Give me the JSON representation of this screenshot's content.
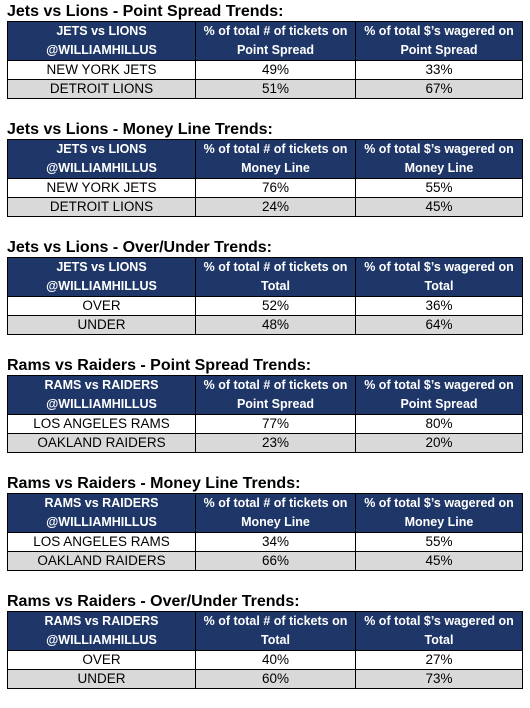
{
  "sections": [
    {
      "title": "Jets vs Lions - Point Spread Trends:",
      "header": [
        [
          "JETS vs LIONS",
          "@WILLIAMHILLUS"
        ],
        [
          "% of total # of tickets on",
          "Point Spread"
        ],
        [
          "% of total $’s wagered on",
          "Point Spread"
        ]
      ],
      "rows": [
        [
          "NEW YORK JETS",
          "49%",
          "33%"
        ],
        [
          "DETROIT LIONS",
          "51%",
          "67%"
        ]
      ]
    },
    {
      "title": "Jets vs Lions - Money Line Trends:",
      "header": [
        [
          "JETS vs LIONS",
          "@WILLIAMHILLUS"
        ],
        [
          "% of total # of tickets on",
          "Money Line"
        ],
        [
          "% of total $’s wagered on",
          "Money Line"
        ]
      ],
      "rows": [
        [
          "NEW YORK JETS",
          "76%",
          "55%"
        ],
        [
          "DETROIT LIONS",
          "24%",
          "45%"
        ]
      ]
    },
    {
      "title": "Jets vs Lions - Over/Under Trends:",
      "header": [
        [
          "JETS vs LIONS",
          "@WILLIAMHILLUS"
        ],
        [
          "% of total # of tickets on",
          "Total"
        ],
        [
          "% of total $’s wagered on",
          "Total"
        ]
      ],
      "rows": [
        [
          "OVER",
          "52%",
          "36%"
        ],
        [
          "UNDER",
          "48%",
          "64%"
        ]
      ]
    },
    {
      "title": "Rams vs Raiders - Point Spread Trends:",
      "header": [
        [
          "RAMS vs RAIDERS",
          "@WILLIAMHILLUS"
        ],
        [
          "% of total # of tickets on",
          "Point Spread"
        ],
        [
          "% of total $’s wagered on",
          "Point Spread"
        ]
      ],
      "rows": [
        [
          "LOS ANGELES RAMS",
          "77%",
          "80%"
        ],
        [
          "OAKLAND RAIDERS",
          "23%",
          "20%"
        ]
      ]
    },
    {
      "title": "Rams vs Raiders - Money Line Trends:",
      "header": [
        [
          "RAMS vs RAIDERS",
          "@WILLIAMHILLUS"
        ],
        [
          "% of total # of tickets on",
          "Money Line"
        ],
        [
          "% of total $’s wagered on",
          "Money Line"
        ]
      ],
      "rows": [
        [
          "LOS ANGELES RAMS",
          "34%",
          "55%"
        ],
        [
          "OAKLAND RAIDERS",
          "66%",
          "45%"
        ]
      ]
    },
    {
      "title": "Rams vs Raiders - Over/Under Trends:",
      "header": [
        [
          "RAMS vs RAIDERS",
          "@WILLIAMHILLUS"
        ],
        [
          "% of total # of tickets on",
          "Total"
        ],
        [
          "% of total $’s wagered on",
          "Total"
        ]
      ],
      "rows": [
        [
          "OVER",
          "40%",
          "27%"
        ],
        [
          "UNDER",
          "60%",
          "73%"
        ]
      ]
    }
  ]
}
